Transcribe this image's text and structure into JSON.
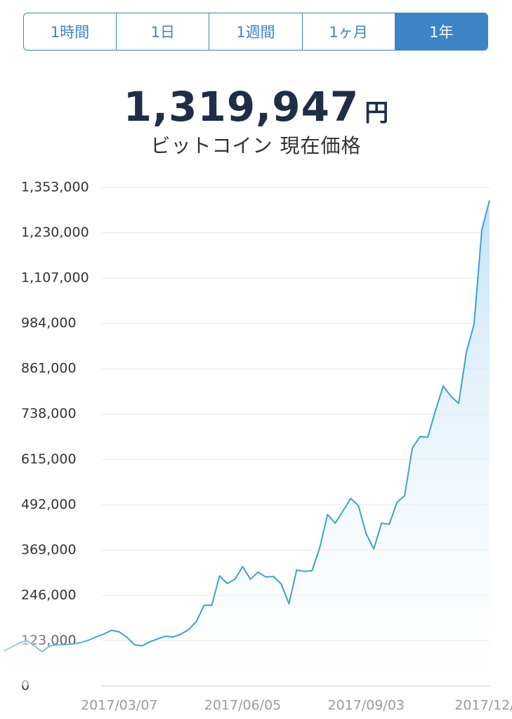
{
  "tabs": [
    "1時間",
    "1日",
    "1週間",
    "1ヶ月",
    "1年"
  ],
  "selected": "1年",
  "price": {
    "value": "1,319,947",
    "unit": "円",
    "caption": "ビットコイン 現在価格"
  },
  "chart_data": {
    "type": "line",
    "categories": [
      null,
      null,
      null,
      null,
      null,
      null,
      null,
      null,
      null,
      null,
      null,
      null,
      null,
      null,
      null,
      "2017/03/07",
      null,
      null,
      null,
      null,
      null,
      null,
      null,
      null,
      null,
      null,
      null,
      null,
      null,
      null,
      null,
      "2017/06/05",
      null,
      null,
      null,
      null,
      null,
      null,
      null,
      null,
      null,
      null,
      null,
      null,
      null,
      null,
      null,
      "2017/09/03",
      null,
      null,
      null,
      null,
      null,
      null,
      null,
      null,
      null,
      null,
      null,
      null,
      null,
      null,
      null,
      "2017/12/"
    ],
    "series": [
      {
        "color": "#3aa0dc",
        "values": [
          95000,
          105000,
          116000,
          124000,
          109000,
          93000,
          109000,
          112000,
          112000,
          114000,
          118000,
          124000,
          133000,
          141000,
          151000,
          147000,
          132000,
          112000,
          109000,
          120000,
          128000,
          135000,
          133000,
          141000,
          153000,
          175000,
          219000,
          219000,
          299000,
          278000,
          290000,
          324000,
          290000,
          309000,
          296000,
          297000,
          277000,
          223000,
          315000,
          311000,
          313000,
          376000,
          465000,
          442000,
          475000,
          509000,
          490000,
          414000,
          372000,
          442000,
          439000,
          498000,
          517000,
          646000,
          677000,
          675000,
          748000,
          814000,
          786000,
          767000,
          906000,
          982000,
          1238000,
          1318000
        ]
      }
    ],
    "ylim": [
      0,
      1353000
    ],
    "yticks": [
      0,
      {
        "value": 123000,
        "label": "123,000"
      },
      {
        "value": 246000,
        "label": "246,000"
      },
      {
        "value": 369000,
        "label": "369,000"
      },
      {
        "value": 492000,
        "label": "492,000"
      },
      {
        "value": 615000,
        "label": "615,000"
      },
      {
        "value": 738000,
        "label": "738,000"
      },
      {
        "value": 861000,
        "label": "861,000"
      },
      {
        "value": 984000,
        "label": "984,000"
      },
      {
        "value": 1107000,
        "label": "1,107,000"
      },
      {
        "value": 1230000,
        "label": "1,230,000"
      },
      {
        "value": 1353000,
        "label": "1,353,000"
      }
    ],
    "grid": true
  }
}
